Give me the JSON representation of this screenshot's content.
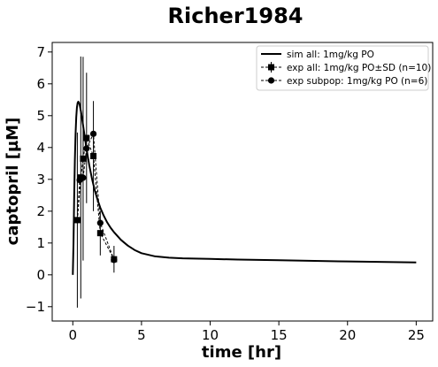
{
  "chart_data": {
    "type": "line",
    "title": "Richer1984",
    "xlabel": "time [hr]",
    "ylabel": "captopril [µM]",
    "xlim": [
      -1.5,
      26.2
    ],
    "ylim": [
      -1.45,
      7.3
    ],
    "xticks": [
      0,
      5,
      10,
      15,
      20,
      25
    ],
    "xtick_labels": [
      "0",
      "5",
      "10",
      "15",
      "20",
      "25"
    ],
    "yticks": [
      -1,
      0,
      1,
      2,
      3,
      4,
      5,
      6,
      7
    ],
    "ytick_labels": [
      "−1",
      "0",
      "1",
      "2",
      "3",
      "4",
      "5",
      "6",
      "7"
    ],
    "grid": false,
    "legend_position": "top-right",
    "series": [
      {
        "name": "sim all: 1mg/kg PO",
        "style": "solid-line",
        "color": "#000000",
        "x": [
          0,
          0.05,
          0.1,
          0.15,
          0.2,
          0.25,
          0.3,
          0.35,
          0.4,
          0.45,
          0.5,
          0.6,
          0.7,
          0.8,
          0.9,
          1.0,
          1.2,
          1.4,
          1.6,
          1.8,
          2.0,
          2.25,
          2.5,
          2.75,
          3.0,
          3.5,
          4.0,
          4.5,
          5.0,
          6.0,
          7.0,
          8.0,
          10.0,
          12.0,
          15.0,
          20.0,
          25.0
        ],
        "y": [
          0,
          0.98,
          2.46,
          3.61,
          4.42,
          4.95,
          5.26,
          5.4,
          5.44,
          5.41,
          5.34,
          5.11,
          4.84,
          4.54,
          4.25,
          3.96,
          3.44,
          3.01,
          2.65,
          2.36,
          2.11,
          1.86,
          1.65,
          1.48,
          1.34,
          1.1,
          0.92,
          0.78,
          0.68,
          0.58,
          0.54,
          0.52,
          0.5,
          0.48,
          0.46,
          0.42,
          0.39
        ]
      },
      {
        "name": "exp all: 1mg/kg PO±SD (n=10)",
        "style": "dashed-square-errorbar",
        "color": "#000000",
        "x": [
          0.33,
          0.58,
          0.75,
          1.0,
          1.5,
          2.0,
          3.0
        ],
        "y": [
          1.72,
          3.06,
          3.65,
          4.3,
          3.73,
          1.31,
          0.49
        ],
        "yerr": [
          2.75,
          3.8,
          3.2,
          2.05,
          1.73,
          0.7,
          0.42
        ]
      },
      {
        "name": "exp subpop: 1mg/kg PO (n=6)",
        "style": "dashed-circle",
        "color": "#000000",
        "x": [
          0.33,
          0.5,
          0.75,
          1.0,
          1.5,
          2.0,
          3.0
        ],
        "y": [
          1.72,
          2.98,
          3.05,
          3.97,
          4.43,
          1.63,
          0.47
        ]
      }
    ]
  }
}
